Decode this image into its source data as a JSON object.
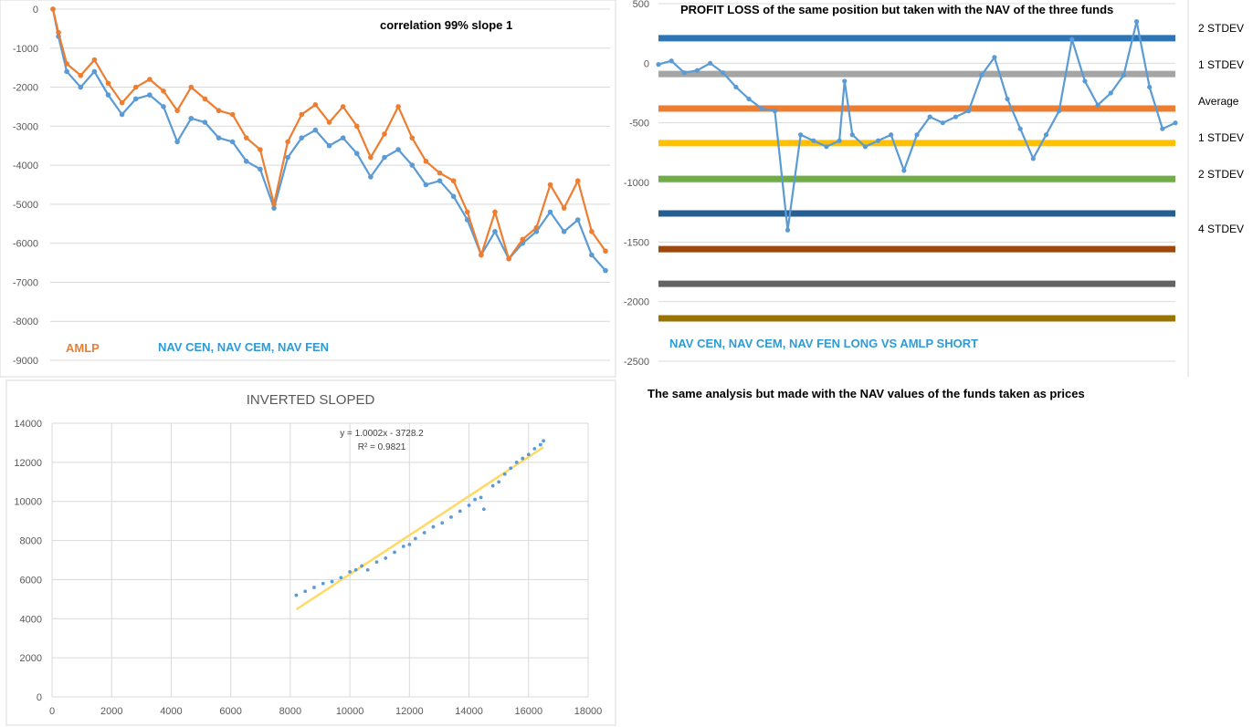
{
  "colors": {
    "amlp": "#ED7D31",
    "nav": "#5B9BD5",
    "label_blue": "#2E9BD6",
    "trend": "#FFD966",
    "grid": "#D9D9D9",
    "axis_text": "#595959"
  },
  "charts": {
    "top_left": {
      "annotation": "correlation 99% slope 1",
      "legend_amlp": "AMLP",
      "legend_nav": "NAV CEN, NAV CEM, NAV FEN",
      "y_ticks": [
        "0",
        "-1000",
        "-2000",
        "-3000",
        "-4000",
        "-5000",
        "-6000",
        "-7000",
        "-8000",
        "-9000"
      ]
    },
    "top_right": {
      "title": "PROFIT LOSS of the same position but taken with the NAV of the three funds",
      "label": "NAV CEN, NAV CEM, NAV FEN  LONG  VS AMLP SHORT",
      "caption": "The same analysis but made with the NAV values of the funds taken as prices",
      "y_ticks": [
        "500",
        "0",
        "-500",
        "-1000",
        "-1500",
        "-2000",
        "-2500"
      ],
      "band_labels": [
        "2 STDEV",
        "1 STDEV",
        "Average",
        "1 STDEV",
        "2 STDEV",
        "4 STDEV"
      ]
    },
    "bottom_left": {
      "title": "INVERTED SLOPED",
      "equation": "y = 1.0002x - 3728.2",
      "r_squared": "R² = 0.9821",
      "x_ticks": [
        "0",
        "2000",
        "4000",
        "6000",
        "8000",
        "10000",
        "12000",
        "14000",
        "16000",
        "18000"
      ],
      "y_ticks": [
        "0",
        "2000",
        "4000",
        "6000",
        "8000",
        "10000",
        "12000",
        "14000"
      ]
    }
  },
  "chart_data": [
    {
      "type": "line",
      "title": "",
      "annotation": "correlation 99% slope 1",
      "ylim": [
        -9000,
        0
      ],
      "series": [
        {
          "name": "AMLP",
          "color": "#ED7D31",
          "x": [
            0,
            2,
            5,
            10,
            15,
            20,
            25,
            30,
            35,
            40,
            45,
            50,
            55,
            60,
            65,
            70,
            75,
            80,
            85,
            90,
            95,
            100,
            105,
            110,
            115,
            120,
            125,
            130,
            135,
            140,
            145,
            150,
            155,
            160,
            165,
            170,
            175,
            180,
            185,
            190,
            195,
            200
          ],
          "y": [
            0,
            -600,
            -1400,
            -1700,
            -1300,
            -1900,
            -2400,
            -2000,
            -1800,
            -2100,
            -2600,
            -2000,
            -2300,
            -2600,
            -2700,
            -3300,
            -3600,
            -5000,
            -3400,
            -2700,
            -2450,
            -2900,
            -2500,
            -3000,
            -3800,
            -3200,
            -2500,
            -3300,
            -3900,
            -4200,
            -4400,
            -5200,
            -6300,
            -5200,
            -6400,
            -5900,
            -5600,
            -4500,
            -5100,
            -4400,
            -5700,
            -6200
          ]
        },
        {
          "name": "NAV CEN, NAV CEM, NAV FEN",
          "color": "#5B9BD5",
          "x": [
            0,
            2,
            5,
            10,
            15,
            20,
            25,
            30,
            35,
            40,
            45,
            50,
            55,
            60,
            65,
            70,
            75,
            80,
            85,
            90,
            95,
            100,
            105,
            110,
            115,
            120,
            125,
            130,
            135,
            140,
            145,
            150,
            155,
            160,
            165,
            170,
            175,
            180,
            185,
            190,
            195,
            200
          ],
          "y": [
            0,
            -700,
            -1600,
            -2000,
            -1600,
            -2200,
            -2700,
            -2300,
            -2200,
            -2500,
            -3400,
            -2800,
            -2900,
            -3300,
            -3400,
            -3900,
            -4100,
            -5100,
            -3800,
            -3300,
            -3100,
            -3500,
            -3300,
            -3700,
            -4300,
            -3800,
            -3600,
            -4000,
            -4500,
            -4400,
            -4800,
            -5400,
            -6300,
            -5700,
            -6400,
            -6000,
            -5700,
            -5200,
            -5700,
            -5400,
            -6300,
            -6700
          ]
        }
      ]
    },
    {
      "type": "line",
      "title": "PROFIT LOSS of the same position but taken with the NAV of the three funds",
      "ylim": [
        -2500,
        500
      ],
      "series": [
        {
          "name": "",
          "color": "#5B9BD5",
          "x": [
            0,
            5,
            10,
            15,
            20,
            25,
            30,
            35,
            40,
            45,
            50,
            55,
            60,
            65,
            70,
            72,
            75,
            80,
            85,
            90,
            95,
            100,
            105,
            110,
            115,
            120,
            125,
            130,
            135,
            140,
            145,
            150,
            155,
            160,
            165,
            170,
            175,
            180,
            185,
            190,
            195,
            200
          ],
          "y": [
            -10,
            20,
            -80,
            -60,
            0,
            -80,
            -200,
            -300,
            -380,
            -400,
            -1400,
            -600,
            -650,
            -700,
            -650,
            -150,
            -600,
            -700,
            -650,
            -600,
            -900,
            -600,
            -450,
            -500,
            -450,
            -400,
            -100,
            50,
            -300,
            -550,
            -800,
            -600,
            -400,
            200,
            -150,
            -350,
            -250,
            -100,
            350,
            -200,
            -550,
            -500
          ]
        }
      ],
      "reference_lines": [
        {
          "label": "2 STDEV",
          "value": 210,
          "color": "#2E75B6"
        },
        {
          "label": "1 STDEV",
          "value": -90,
          "color": "#A5A5A5"
        },
        {
          "label": "Average",
          "value": -380,
          "color": "#ED7D31"
        },
        {
          "label": "1 STDEV",
          "value": -670,
          "color": "#FFC000"
        },
        {
          "label": "2 STDEV",
          "value": -970,
          "color": "#70AD47"
        },
        {
          "label": "4 STDEV",
          "value": -1260,
          "color": "#255E91"
        },
        {
          "label": "",
          "value": -1560,
          "color": "#9E480E"
        },
        {
          "label": "",
          "value": -1850,
          "color": "#636363"
        },
        {
          "label": "",
          "value": -2140,
          "color": "#997300"
        }
      ]
    },
    {
      "type": "scatter",
      "title": "INVERTED SLOPED",
      "xlim": [
        0,
        18000
      ],
      "ylim": [
        0,
        14000
      ],
      "trendline": {
        "equation": "y = 1.0002x - 3728.2",
        "r_squared": "R² = 0.9821",
        "slope": 1.0002,
        "intercept": -3728.2,
        "x_range": [
          8200,
          16500
        ],
        "color": "#FFD966"
      },
      "series": [
        {
          "name": "",
          "color": "#5B9BD5",
          "x": [
            8200,
            8500,
            8800,
            9100,
            9400,
            9700,
            10000,
            10200,
            10400,
            10600,
            10900,
            11200,
            11500,
            11800,
            12000,
            12200,
            12500,
            12800,
            13100,
            13400,
            13700,
            14000,
            14200,
            14400,
            14500,
            14800,
            15000,
            15200,
            15400,
            15600,
            15800,
            16000,
            16200,
            16400,
            16500
          ],
          "y": [
            5200,
            5400,
            5600,
            5800,
            5900,
            6100,
            6400,
            6500,
            6700,
            6500,
            6900,
            7100,
            7400,
            7700,
            7800,
            8100,
            8400,
            8700,
            8900,
            9200,
            9500,
            9800,
            10100,
            10200,
            9600,
            10800,
            11000,
            11400,
            11700,
            12000,
            12200,
            12400,
            12700,
            12900,
            13100
          ]
        }
      ]
    }
  ]
}
